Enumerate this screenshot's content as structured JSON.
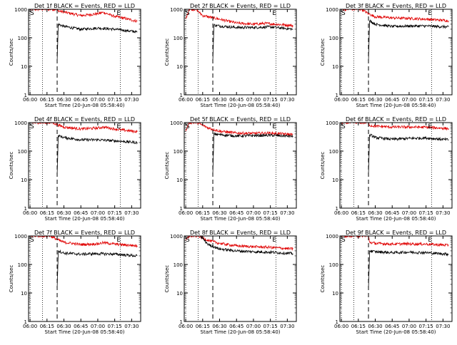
{
  "chart_data": [
    {
      "type": "line",
      "title": "Det 1f BLACK = Events, RED = LLD",
      "xlabel": "Start Time (20-Jun-08 05:58:40)",
      "ylabel": "Counts/sec",
      "yscale": "log",
      "ylim": [
        1,
        1000
      ],
      "xticks": [
        "06:00",
        "06:15",
        "06:30",
        "06:45",
        "07:00",
        "07:15",
        "07:30"
      ],
      "yticks": [
        "1",
        "10",
        "100",
        "1000"
      ],
      "markers": {
        "S": "05:58:40",
        "E": "07:18"
      },
      "vlines_dotted": [
        "06:00",
        "06:11",
        "07:20"
      ],
      "vlines_dashed": [
        "06:24"
      ],
      "series": [
        {
          "color": "#e00000",
          "points": [
            [
              "06:00",
              1000
            ],
            [
              "06:24",
              1000
            ],
            [
              "06:24",
              900
            ],
            [
              "06:30",
              800
            ],
            [
              "06:45",
              600
            ],
            [
              "07:00",
              700
            ],
            [
              "07:05",
              780
            ],
            [
              "07:15",
              560
            ],
            [
              "07:20",
              520
            ],
            [
              "07:35",
              380
            ]
          ]
        },
        {
          "color": "#000000",
          "points": [
            [
              "06:24",
              15
            ],
            [
              "06:25",
              300
            ],
            [
              "06:30",
              250
            ],
            [
              "06:45",
              200
            ],
            [
              "07:00",
              220
            ],
            [
              "07:15",
              200
            ],
            [
              "07:20",
              190
            ],
            [
              "07:35",
              160
            ]
          ]
        }
      ]
    },
    {
      "type": "line",
      "title": "Det 2f BLACK = Events, RED = LLD",
      "xlabel": "Start Time (20-Jun-08 05:58:40)",
      "ylabel": "Counts/sec",
      "yscale": "log",
      "ylim": [
        1,
        1000
      ],
      "xticks": [
        "06:00",
        "06:15",
        "06:30",
        "06:45",
        "07:00",
        "07:15",
        "07:30"
      ],
      "yticks": [
        "1",
        "10",
        "100",
        "1000"
      ],
      "markers": {
        "S": "05:58:40",
        "E": "07:18"
      },
      "vlines_dotted": [
        "06:00",
        "06:11",
        "07:20"
      ],
      "vlines_dashed": [
        "06:24"
      ],
      "series": [
        {
          "color": "#e00000",
          "points": [
            [
              "06:00",
              450
            ],
            [
              "06:03",
              1000
            ],
            [
              "06:09",
              1000
            ],
            [
              "06:15",
              600
            ],
            [
              "06:30",
              450
            ],
            [
              "06:45",
              330
            ],
            [
              "07:00",
              300
            ],
            [
              "07:10",
              320
            ],
            [
              "07:20",
              300
            ],
            [
              "07:35",
              270
            ]
          ]
        },
        {
          "color": "#000000",
          "points": [
            [
              "06:24",
              15
            ],
            [
              "06:25",
              280
            ],
            [
              "06:30",
              260
            ],
            [
              "06:45",
              230
            ],
            [
              "07:00",
              230
            ],
            [
              "07:15",
              240
            ],
            [
              "07:20",
              230
            ],
            [
              "07:35",
              200
            ]
          ]
        }
      ]
    },
    {
      "type": "line",
      "title": "Det 3f BLACK = Events, RED = LLD",
      "xlabel": "Start Time (20-Jun-08 05:58:40)",
      "ylabel": "Counts/sec",
      "yscale": "log",
      "ylim": [
        1,
        1000
      ],
      "xticks": [
        "06:00",
        "06:15",
        "06:30",
        "06:45",
        "07:00",
        "07:15",
        "07:30"
      ],
      "yticks": [
        "1",
        "10",
        "100",
        "1000"
      ],
      "markers": {
        "S": "05:58:40",
        "E": "07:18"
      },
      "vlines_dotted": [
        "06:00",
        "06:11",
        "07:20"
      ],
      "vlines_dashed": [
        "06:24"
      ],
      "series": [
        {
          "color": "#e00000",
          "points": [
            [
              "06:00",
              1000
            ],
            [
              "06:18",
              1000
            ],
            [
              "06:24",
              700
            ],
            [
              "06:30",
              550
            ],
            [
              "06:45",
              500
            ],
            [
              "07:00",
              480
            ],
            [
              "07:15",
              450
            ],
            [
              "07:35",
              400
            ]
          ]
        },
        {
          "color": "#000000",
          "points": [
            [
              "06:24",
              15
            ],
            [
              "06:25",
              400
            ],
            [
              "06:30",
              300
            ],
            [
              "06:45",
              250
            ],
            [
              "07:00",
              260
            ],
            [
              "07:15",
              260
            ],
            [
              "07:35",
              240
            ]
          ]
        }
      ]
    },
    {
      "type": "line",
      "title": "Det 4f BLACK = Events, RED = LLD",
      "xlabel": "Start Time (20-Jun-08 05:58:40)",
      "ylabel": "Counts/sec",
      "yscale": "log",
      "ylim": [
        1,
        1000
      ],
      "xticks": [
        "06:00",
        "06:15",
        "06:30",
        "06:45",
        "07:00",
        "07:15",
        "07:30"
      ],
      "yticks": [
        "1",
        "10",
        "100",
        "1000"
      ],
      "markers": {
        "S": "05:58:40",
        "E": "07:18"
      },
      "vlines_dotted": [
        "06:00",
        "06:11",
        "07:20"
      ],
      "vlines_dashed": [
        "06:24"
      ],
      "series": [
        {
          "color": "#e00000",
          "points": [
            [
              "06:00",
              1000
            ],
            [
              "06:20",
              1000
            ],
            [
              "06:24",
              850
            ],
            [
              "06:30",
              700
            ],
            [
              "06:45",
              600
            ],
            [
              "07:00",
              650
            ],
            [
              "07:05",
              700
            ],
            [
              "07:15",
              600
            ],
            [
              "07:20",
              560
            ],
            [
              "07:35",
              480
            ]
          ]
        },
        {
          "color": "#000000",
          "points": [
            [
              "06:24",
              15
            ],
            [
              "06:25",
              350
            ],
            [
              "06:30",
              300
            ],
            [
              "06:45",
              250
            ],
            [
              "07:00",
              250
            ],
            [
              "07:15",
              230
            ],
            [
              "07:35",
              200
            ]
          ]
        }
      ]
    },
    {
      "type": "line",
      "title": "Det 5f BLACK = Events, RED = LLD",
      "xlabel": "Start Time (20-Jun-08 05:58:40)",
      "ylabel": "Counts/sec",
      "yscale": "log",
      "ylim": [
        1,
        1000
      ],
      "xticks": [
        "06:00",
        "06:15",
        "06:30",
        "06:45",
        "07:00",
        "07:15",
        "07:30"
      ],
      "yticks": [
        "1",
        "10",
        "100",
        "1000"
      ],
      "markers": {
        "S": "05:58:40",
        "E": "07:18"
      },
      "vlines_dotted": [
        "06:00",
        "06:11",
        "07:20"
      ],
      "vlines_dashed": [
        "06:24"
      ],
      "series": [
        {
          "color": "#e00000",
          "points": [
            [
              "06:00",
              500
            ],
            [
              "06:03",
              1000
            ],
            [
              "06:10",
              1000
            ],
            [
              "06:20",
              650
            ],
            [
              "06:30",
              500
            ],
            [
              "06:45",
              430
            ],
            [
              "07:00",
              420
            ],
            [
              "07:15",
              430
            ],
            [
              "07:35",
              380
            ]
          ]
        },
        {
          "color": "#000000",
          "points": [
            [
              "06:24",
              15
            ],
            [
              "06:25",
              400
            ],
            [
              "06:30",
              380
            ],
            [
              "06:45",
              340
            ],
            [
              "07:00",
              350
            ],
            [
              "07:15",
              360
            ],
            [
              "07:35",
              330
            ]
          ]
        }
      ]
    },
    {
      "type": "line",
      "title": "Det 6f BLACK = Events, RED = LLD",
      "xlabel": "Start Time (20-Jun-08 05:58:40)",
      "ylabel": "Counts/sec",
      "yscale": "log",
      "ylim": [
        1,
        1000
      ],
      "xticks": [
        "06:00",
        "06:15",
        "06:30",
        "06:45",
        "07:00",
        "07:15",
        "07:30"
      ],
      "yticks": [
        "1",
        "10",
        "100",
        "1000"
      ],
      "markers": {
        "S": "05:58:40",
        "E": "07:18"
      },
      "vlines_dotted": [
        "06:00",
        "06:11",
        "07:20"
      ],
      "vlines_dashed": [
        "06:24"
      ],
      "series": [
        {
          "color": "#e00000",
          "points": [
            [
              "06:00",
              1000
            ],
            [
              "06:24",
              1000
            ],
            [
              "06:25",
              800
            ],
            [
              "06:30",
              750
            ],
            [
              "06:45",
              700
            ],
            [
              "07:00",
              700
            ],
            [
              "07:15",
              690
            ],
            [
              "07:35",
              620
            ]
          ]
        },
        {
          "color": "#000000",
          "points": [
            [
              "06:24",
              15
            ],
            [
              "06:25",
              380
            ],
            [
              "06:30",
              300
            ],
            [
              "06:45",
              260
            ],
            [
              "07:00",
              280
            ],
            [
              "07:15",
              290
            ],
            [
              "07:35",
              250
            ]
          ]
        }
      ]
    },
    {
      "type": "line",
      "title": "Det 7f BLACK = Events, RED = LLD",
      "xlabel": "Start Time (20-Jun-08 05:58:40)",
      "ylabel": "Counts/sec",
      "yscale": "log",
      "ylim": [
        1,
        1000
      ],
      "xticks": [
        "06:00",
        "06:15",
        "06:30",
        "06:45",
        "07:00",
        "07:15",
        "07:30"
      ],
      "yticks": [
        "1",
        "10",
        "100",
        "1000"
      ],
      "markers": {
        "S": "05:58:40",
        "E": "07:18"
      },
      "vlines_dotted": [
        "06:00",
        "06:11",
        "07:20"
      ],
      "vlines_dashed": [
        "06:24"
      ],
      "series": [
        {
          "color": "#e00000",
          "points": [
            [
              "06:00",
              1000
            ],
            [
              "06:18",
              1000
            ],
            [
              "06:24",
              750
            ],
            [
              "06:30",
              600
            ],
            [
              "06:45",
              500
            ],
            [
              "07:00",
              530
            ],
            [
              "07:05",
              580
            ],
            [
              "07:15",
              520
            ],
            [
              "07:35",
              450
            ]
          ]
        },
        {
          "color": "#000000",
          "points": [
            [
              "06:24",
              15
            ],
            [
              "06:25",
              300
            ],
            [
              "06:30",
              250
            ],
            [
              "06:45",
              230
            ],
            [
              "07:00",
              240
            ],
            [
              "07:15",
              230
            ],
            [
              "07:35",
              200
            ]
          ]
        }
      ]
    },
    {
      "type": "line",
      "title": "Det 8f BLACK = Events, RED = LLD",
      "xlabel": "Start Time (20-Jun-08 05:58:40)",
      "ylabel": "Counts/sec",
      "yscale": "log",
      "ylim": [
        1,
        1000
      ],
      "xticks": [
        "06:00",
        "06:15",
        "06:30",
        "06:45",
        "07:00",
        "07:15",
        "07:30"
      ],
      "yticks": [
        "1",
        "10",
        "100",
        "1000"
      ],
      "markers": {
        "S": "05:58:40",
        "E": "07:18"
      },
      "vlines_dotted": [
        "06:00",
        "06:11",
        "07:20"
      ],
      "vlines_dashed": [
        "06:24"
      ],
      "series": [
        {
          "color": "#e00000",
          "points": [
            [
              "06:00",
              700
            ],
            [
              "06:03",
              1000
            ],
            [
              "06:11",
              1000
            ],
            [
              "06:20",
              700
            ],
            [
              "06:30",
              550
            ],
            [
              "06:45",
              450
            ],
            [
              "07:00",
              420
            ],
            [
              "07:15",
              400
            ],
            [
              "07:35",
              350
            ]
          ]
        },
        {
          "color": "#000000",
          "points": [
            [
              "06:13",
              1000
            ],
            [
              "06:20",
              500
            ],
            [
              "06:30",
              350
            ],
            [
              "06:45",
              300
            ],
            [
              "07:00",
              280
            ],
            [
              "07:15",
              270
            ],
            [
              "07:35",
              240
            ]
          ]
        }
      ]
    },
    {
      "type": "line",
      "title": "Det 9f BLACK = Events, RED = LLD",
      "xlabel": "Start Time (20-Jun-08 05:58:40)",
      "ylabel": "Counts/sec",
      "yscale": "log",
      "ylim": [
        1,
        1000
      ],
      "xticks": [
        "06:00",
        "06:15",
        "06:30",
        "06:45",
        "07:00",
        "07:15",
        "07:30"
      ],
      "yticks": [
        "1",
        "10",
        "100",
        "1000"
      ],
      "markers": {
        "S": "05:58:40",
        "E": "07:18"
      },
      "vlines_dotted": [
        "06:00",
        "06:11",
        "07:20"
      ],
      "vlines_dashed": [
        "06:24"
      ],
      "series": [
        {
          "color": "#e00000",
          "points": [
            [
              "06:00",
              1000
            ],
            [
              "06:24",
              1000
            ],
            [
              "06:25",
              600
            ],
            [
              "06:30",
              550
            ],
            [
              "06:45",
              520
            ],
            [
              "07:00",
              530
            ],
            [
              "07:15",
              520
            ],
            [
              "07:35",
              470
            ]
          ]
        },
        {
          "color": "#000000",
          "points": [
            [
              "06:24",
              15
            ],
            [
              "06:25",
              300
            ],
            [
              "06:30",
              280
            ],
            [
              "06:45",
              260
            ],
            [
              "07:00",
              270
            ],
            [
              "07:15",
              260
            ],
            [
              "07:35",
              230
            ]
          ]
        }
      ]
    }
  ]
}
